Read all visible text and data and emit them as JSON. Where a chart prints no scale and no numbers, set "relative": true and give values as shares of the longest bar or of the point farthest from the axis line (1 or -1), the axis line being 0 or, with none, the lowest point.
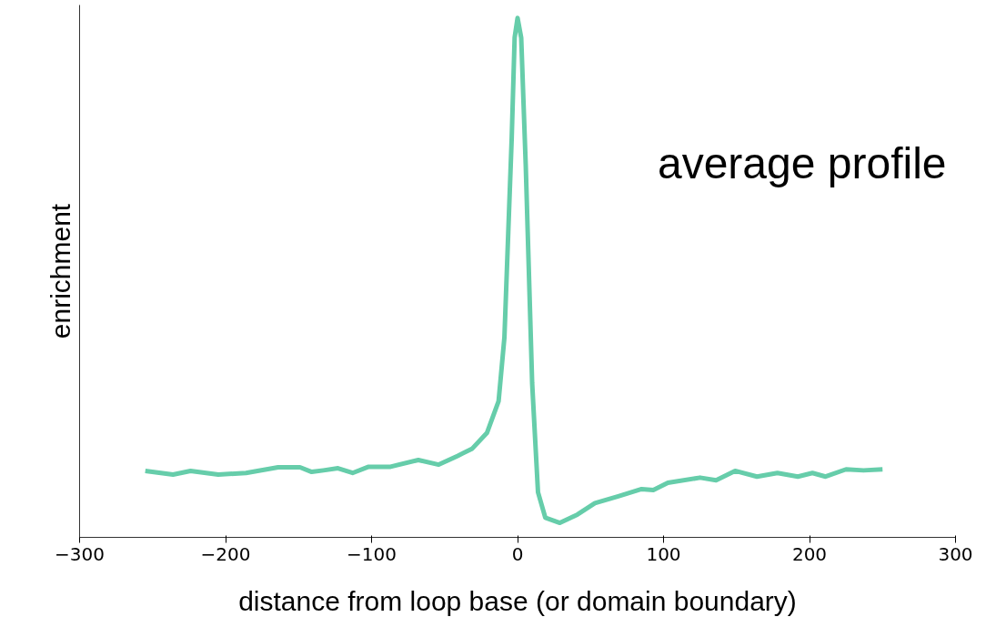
{
  "chart_data": {
    "type": "line",
    "relative": true,
    "xlabel": "distance from loop base (or domain boundary)",
    "ylabel": "enrichment",
    "annotations": [
      "average profile"
    ],
    "xlim": [
      -300,
      300
    ],
    "xticks": [
      {
        "value": -300,
        "label": "−300"
      },
      {
        "value": -200,
        "label": "−200"
      },
      {
        "value": -100,
        "label": "−100"
      },
      0,
      100,
      200,
      300
    ],
    "grid": false,
    "marker": "none",
    "line_style": "solid",
    "series": [
      {
        "color": "#66cdaa",
        "x": [
          -255,
          -236,
          -224,
          -205,
          -186,
          -164,
          -149,
          -141,
          -133,
          -123,
          -113,
          -102,
          -87,
          -68,
          -54,
          -41,
          -31,
          -21,
          -13,
          -9,
          -4,
          -2,
          0,
          2.5,
          5.6,
          10,
          14,
          19,
          29,
          41,
          53,
          69,
          85,
          93,
          103,
          125,
          136,
          149,
          164,
          178,
          192,
          202,
          211,
          225,
          237,
          250
        ],
        "values": [
          0.128,
          0.121,
          0.128,
          0.121,
          0.124,
          0.135,
          0.135,
          0.126,
          0.129,
          0.133,
          0.124,
          0.136,
          0.136,
          0.149,
          0.14,
          0.157,
          0.171,
          0.201,
          0.262,
          0.385,
          0.769,
          0.962,
          1,
          0.962,
          0.717,
          0.297,
          0.087,
          0.038,
          0.028,
          0.044,
          0.066,
          0.079,
          0.093,
          0.091,
          0.105,
          0.115,
          0.11,
          0.128,
          0.117,
          0.124,
          0.117,
          0.124,
          0.117,
          0.131,
          0.129,
          0.131
        ]
      }
    ]
  }
}
